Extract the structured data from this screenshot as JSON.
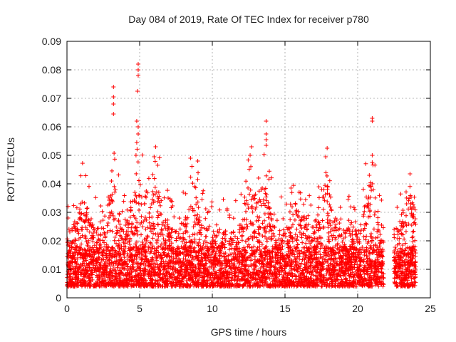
{
  "chart_data": {
    "type": "scatter",
    "title": "Day 084 of 2019, Rate Of TEC Index for receiver p780",
    "xlabel": "GPS time / hours",
    "ylabel": "ROTI / TECUs",
    "xlim": [
      0,
      25
    ],
    "ylim": [
      0,
      0.09
    ],
    "x_ticks": [
      0,
      5,
      10,
      15,
      20,
      25
    ],
    "y_ticks": [
      0,
      0.01,
      0.02,
      0.03,
      0.04,
      0.05,
      0.06,
      0.07,
      0.08,
      0.09
    ],
    "x_tick_labels": [
      "0",
      "5",
      "10",
      "15",
      "20",
      "25"
    ],
    "y_tick_labels": [
      "0",
      "0.01",
      "0.02",
      "0.03",
      "0.04",
      "0.05",
      "0.06",
      "0.07",
      "0.08",
      "0.09"
    ],
    "grid": true,
    "marker": "plus",
    "marker_color": "#ff0000",
    "x_data_range": [
      0,
      24
    ],
    "gap_hours": [
      21.8,
      22.5
    ],
    "series": [
      {
        "name": "ROTI",
        "summary": "Dense cloud of points mostly between 0.005 and 0.03 TECU/min across 0-24 h, no data around 21.8-22.5 h",
        "notable_peaks": [
          {
            "x": 3.2,
            "y": 0.074
          },
          {
            "x": 3.2,
            "y": 0.0705
          },
          {
            "x": 3.2,
            "y": 0.068
          },
          {
            "x": 3.2,
            "y": 0.0645
          },
          {
            "x": 4.9,
            "y": 0.082
          },
          {
            "x": 4.9,
            "y": 0.08
          },
          {
            "x": 4.9,
            "y": 0.078
          },
          {
            "x": 4.85,
            "y": 0.0725
          },
          {
            "x": 4.8,
            "y": 0.062
          },
          {
            "x": 4.9,
            "y": 0.06
          },
          {
            "x": 4.9,
            "y": 0.0575
          },
          {
            "x": 4.8,
            "y": 0.0545
          },
          {
            "x": 4.75,
            "y": 0.05
          },
          {
            "x": 6.1,
            "y": 0.053
          },
          {
            "x": 6.0,
            "y": 0.0495
          },
          {
            "x": 8.5,
            "y": 0.049
          },
          {
            "x": 9.0,
            "y": 0.048
          },
          {
            "x": 12.7,
            "y": 0.053
          },
          {
            "x": 12.6,
            "y": 0.05
          },
          {
            "x": 13.7,
            "y": 0.062
          },
          {
            "x": 13.7,
            "y": 0.0575
          },
          {
            "x": 13.7,
            "y": 0.0555
          },
          {
            "x": 13.7,
            "y": 0.0535
          },
          {
            "x": 17.9,
            "y": 0.0525
          },
          {
            "x": 17.8,
            "y": 0.0495
          },
          {
            "x": 21.0,
            "y": 0.063
          },
          {
            "x": 21.0,
            "y": 0.062
          },
          {
            "x": 21.0,
            "y": 0.05
          },
          {
            "x": 21.0,
            "y": 0.0475
          },
          {
            "x": 20.8,
            "y": 0.043
          },
          {
            "x": 23.6,
            "y": 0.0435
          }
        ]
      }
    ]
  }
}
